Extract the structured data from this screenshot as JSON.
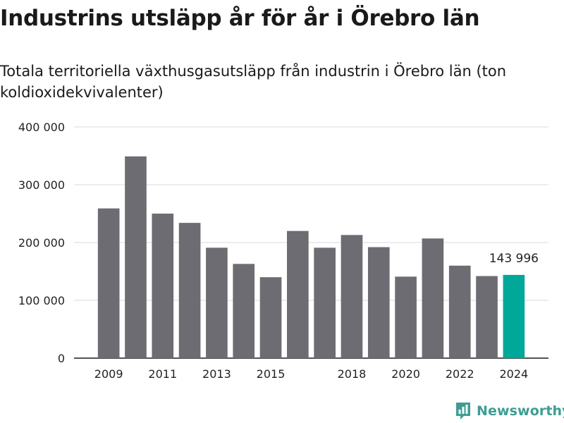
{
  "header": {
    "title": "Industrins utsläpp år för år i Örebro län",
    "subtitle": "Totala territoriella växthusgasutsläpp från industrin i Örebro län (ton koldioxidekvivalenter)"
  },
  "branding": {
    "name": "Newsworthy",
    "logo_icon": "chart-logo-icon",
    "color": "#3e9d93"
  },
  "colors": {
    "bar": "#6d6c72",
    "highlight": "#00a89a",
    "grid": "#d9d9d9",
    "axis": "#1a1a1a"
  },
  "chart_data": {
    "type": "bar",
    "title": "",
    "xlabel": "",
    "ylabel": "",
    "categories": [
      "2009",
      "2010",
      "2011",
      "2012",
      "2013",
      "2014",
      "2015",
      "2016",
      "2017",
      "2018",
      "2019",
      "2020",
      "2021",
      "2022",
      "2023",
      "2024"
    ],
    "values": [
      259000,
      349000,
      250000,
      234000,
      191000,
      163000,
      140000,
      220000,
      191000,
      213000,
      192000,
      141000,
      207000,
      160000,
      142000,
      143996
    ],
    "x_tick_labels": [
      "2009",
      "",
      "2011",
      "",
      "2013",
      "",
      "2015",
      "",
      "",
      "2018",
      "",
      "2020",
      "",
      "2022",
      "",
      "2024"
    ],
    "y_ticks": [
      0,
      100000,
      200000,
      300000,
      400000
    ],
    "y_tick_labels": [
      "0",
      "100 000",
      "200 000",
      "300 000",
      "400 000"
    ],
    "ylim": [
      0,
      400000
    ],
    "grid": true,
    "highlight_index": 15,
    "annotations": [
      {
        "category": "2024",
        "text": "143 996"
      }
    ]
  }
}
